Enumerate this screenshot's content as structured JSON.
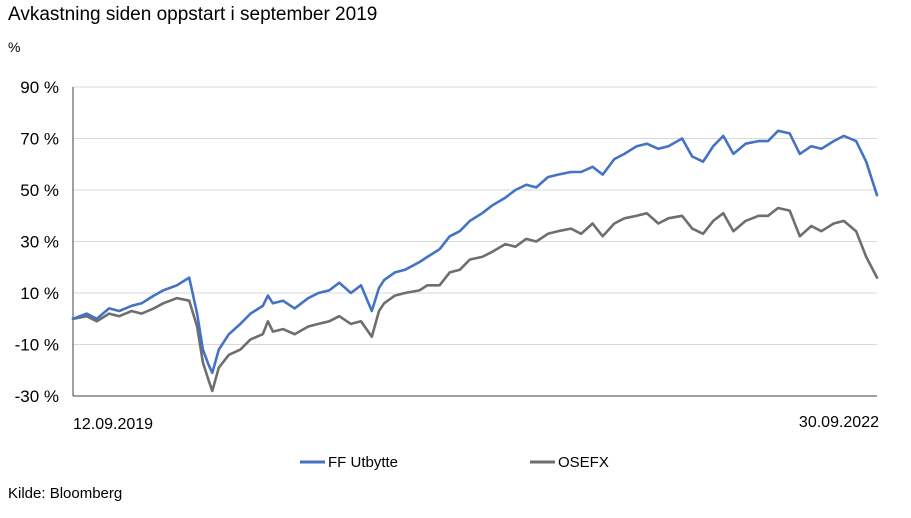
{
  "title": "Avkastning siden oppstart i september 2019",
  "unit_label": "%",
  "source": "Kilde: Bloomberg",
  "colors": {
    "ff": "#4472c4",
    "osefx": "#6e6e6e",
    "grid": "#d9d9d9",
    "axis": "#404040"
  },
  "chart_data": {
    "type": "line",
    "x_start_label": "12.09.2019",
    "x_end_label": "30.09.2022",
    "ylim": [
      -30,
      90
    ],
    "yticks": [
      -30,
      -10,
      10,
      30,
      50,
      70,
      90
    ],
    "ytick_labels": [
      "-30 %",
      "-10 %",
      "10 %",
      "30 %",
      "50 %",
      "70 %",
      "90 %"
    ],
    "grid": true,
    "legend_position": "bottom",
    "dates": [
      "2019-09-12",
      "2019-10-01",
      "2019-10-15",
      "2019-11-01",
      "2019-11-15",
      "2019-12-02",
      "2019-12-16",
      "2020-01-02",
      "2020-01-15",
      "2020-02-03",
      "2020-02-20",
      "2020-03-02",
      "2020-03-10",
      "2020-03-18",
      "2020-03-23",
      "2020-04-01",
      "2020-04-15",
      "2020-05-01",
      "2020-05-15",
      "2020-06-01",
      "2020-06-08",
      "2020-06-15",
      "2020-06-29",
      "2020-07-15",
      "2020-08-03",
      "2020-08-17",
      "2020-09-01",
      "2020-09-15",
      "2020-10-01",
      "2020-10-15",
      "2020-10-30",
      "2020-11-09",
      "2020-11-16",
      "2020-12-01",
      "2020-12-15",
      "2021-01-04",
      "2021-01-15",
      "2021-02-01",
      "2021-02-15",
      "2021-03-01",
      "2021-03-15",
      "2021-04-01",
      "2021-04-15",
      "2021-05-03",
      "2021-05-17",
      "2021-06-01",
      "2021-06-15",
      "2021-07-01",
      "2021-07-15",
      "2021-08-02",
      "2021-08-16",
      "2021-09-01",
      "2021-09-15",
      "2021-10-01",
      "2021-10-15",
      "2021-11-01",
      "2021-11-15",
      "2021-12-01",
      "2021-12-15",
      "2022-01-03",
      "2022-01-17",
      "2022-02-01",
      "2022-02-15",
      "2022-03-01",
      "2022-03-15",
      "2022-04-01",
      "2022-04-19",
      "2022-05-02",
      "2022-05-16",
      "2022-06-01",
      "2022-06-15",
      "2022-07-01",
      "2022-07-15",
      "2022-08-01",
      "2022-08-15",
      "2022-09-01",
      "2022-09-15",
      "2022-09-30"
    ],
    "series": [
      {
        "name": "FF Utbytte",
        "color": "#4472c4",
        "values": [
          0,
          2,
          0,
          4,
          3,
          5,
          6,
          9,
          11,
          13,
          16,
          2,
          -12,
          -18,
          -21,
          -12,
          -6,
          -2,
          2,
          5,
          9,
          6,
          7,
          4,
          8,
          10,
          11,
          14,
          10,
          13,
          3,
          12,
          15,
          18,
          19,
          22,
          24,
          27,
          32,
          34,
          38,
          41,
          44,
          47,
          50,
          52,
          51,
          55,
          56,
          57,
          57,
          59,
          56,
          62,
          64,
          67,
          68,
          66,
          67,
          70,
          63,
          61,
          67,
          71,
          64,
          68,
          69,
          69,
          73,
          72,
          64,
          67,
          66,
          69,
          71,
          69,
          61,
          48
        ]
      },
      {
        "name": "OSEFX",
        "color": "#6e6e6e",
        "values": [
          0,
          1,
          -1,
          2,
          1,
          3,
          2,
          4,
          6,
          8,
          7,
          -3,
          -17,
          -24,
          -28,
          -19,
          -14,
          -12,
          -8,
          -6,
          -1,
          -5,
          -4,
          -6,
          -3,
          -2,
          -1,
          1,
          -2,
          -1,
          -7,
          3,
          6,
          9,
          10,
          11,
          13,
          13,
          18,
          19,
          23,
          24,
          26,
          29,
          28,
          31,
          30,
          33,
          34,
          35,
          33,
          37,
          32,
          37,
          39,
          40,
          41,
          37,
          39,
          40,
          35,
          33,
          38,
          41,
          34,
          38,
          40,
          40,
          43,
          42,
          32,
          36,
          34,
          37,
          38,
          34,
          24,
          16
        ]
      }
    ]
  }
}
